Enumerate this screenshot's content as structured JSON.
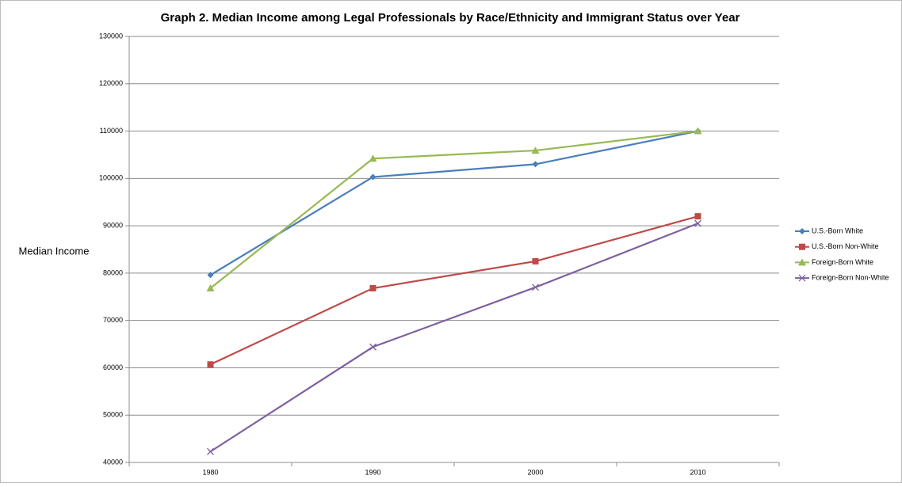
{
  "chart_data": {
    "type": "line",
    "title": "Graph 2. Median Income among Legal Professionals by Race/Ethnicity and Immigrant Status over Year",
    "y_label": "Median Income",
    "categories": [
      "1980",
      "1990",
      "2000",
      "2010"
    ],
    "series": [
      {
        "name": "U.S.-Born White",
        "color": "#4a7ebb",
        "marker": "diamond",
        "values": [
          79600,
          100300,
          103000,
          110000
        ]
      },
      {
        "name": "U.S.-Born Non-White",
        "color": "#be4b48",
        "marker": "square",
        "values": [
          60700,
          76800,
          82500,
          92000
        ]
      },
      {
        "name": "Foreign-Born White",
        "color": "#98b954",
        "marker": "triangle",
        "values": [
          76800,
          104200,
          105900,
          110000
        ]
      },
      {
        "name": "Foreign-Born Non-White",
        "color": "#7d60a0",
        "marker": "x",
        "values": [
          42300,
          64400,
          77000,
          90500
        ]
      }
    ],
    "ylim": [
      40000,
      130000
    ],
    "yticks": [
      40000,
      50000,
      60000,
      70000,
      80000,
      90000,
      100000,
      110000,
      120000,
      130000
    ],
    "grid": true,
    "legend": "right"
  }
}
